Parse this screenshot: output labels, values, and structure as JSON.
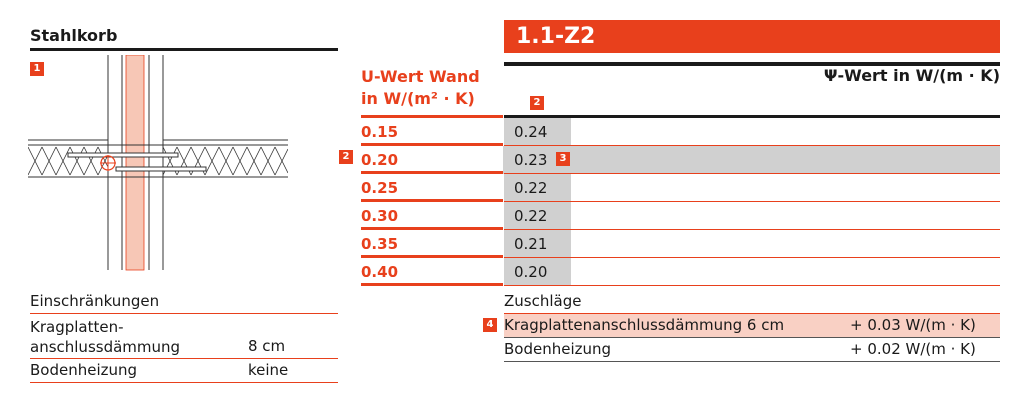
{
  "left": {
    "title": "Stahlkorb",
    "badge": "1"
  },
  "code": "1.1-Z2",
  "table": {
    "u_header_1": "U-Wert Wand",
    "u_header_2": "in W/(m² · K)",
    "psi_header": "Ψ-Wert in W/(m · K)",
    "psi_badge": "2",
    "row_badge": "2",
    "value_badge": "3",
    "rows": [
      {
        "u": "0.15",
        "psi": "0.24"
      },
      {
        "u": "0.20",
        "psi": "0.23"
      },
      {
        "u": "0.25",
        "psi": "0.22"
      },
      {
        "u": "0.30",
        "psi": "0.22"
      },
      {
        "u": "0.35",
        "psi": "0.21"
      },
      {
        "u": "0.40",
        "psi": "0.20"
      }
    ]
  },
  "restrictions": {
    "title": "Einschränkungen",
    "items": [
      {
        "label_1": "Kragplatten-",
        "label_2": "anschlussdämmung",
        "value": "8 cm"
      },
      {
        "label_1": "Bodenheizung",
        "value": "keine"
      }
    ]
  },
  "surcharges": {
    "title": "Zuschläge",
    "badge": "4",
    "items": [
      {
        "label": "Kragplattenanschlussdämmung 6 cm",
        "value": "+ 0.03 W/(m · K)"
      },
      {
        "label": "Bodenheizung",
        "value": "+ 0.02 W/(m · K)"
      }
    ]
  },
  "colors": {
    "accent": "#e8401c",
    "shade": "#d0d0d0",
    "highlight": "#f9d0c4"
  }
}
